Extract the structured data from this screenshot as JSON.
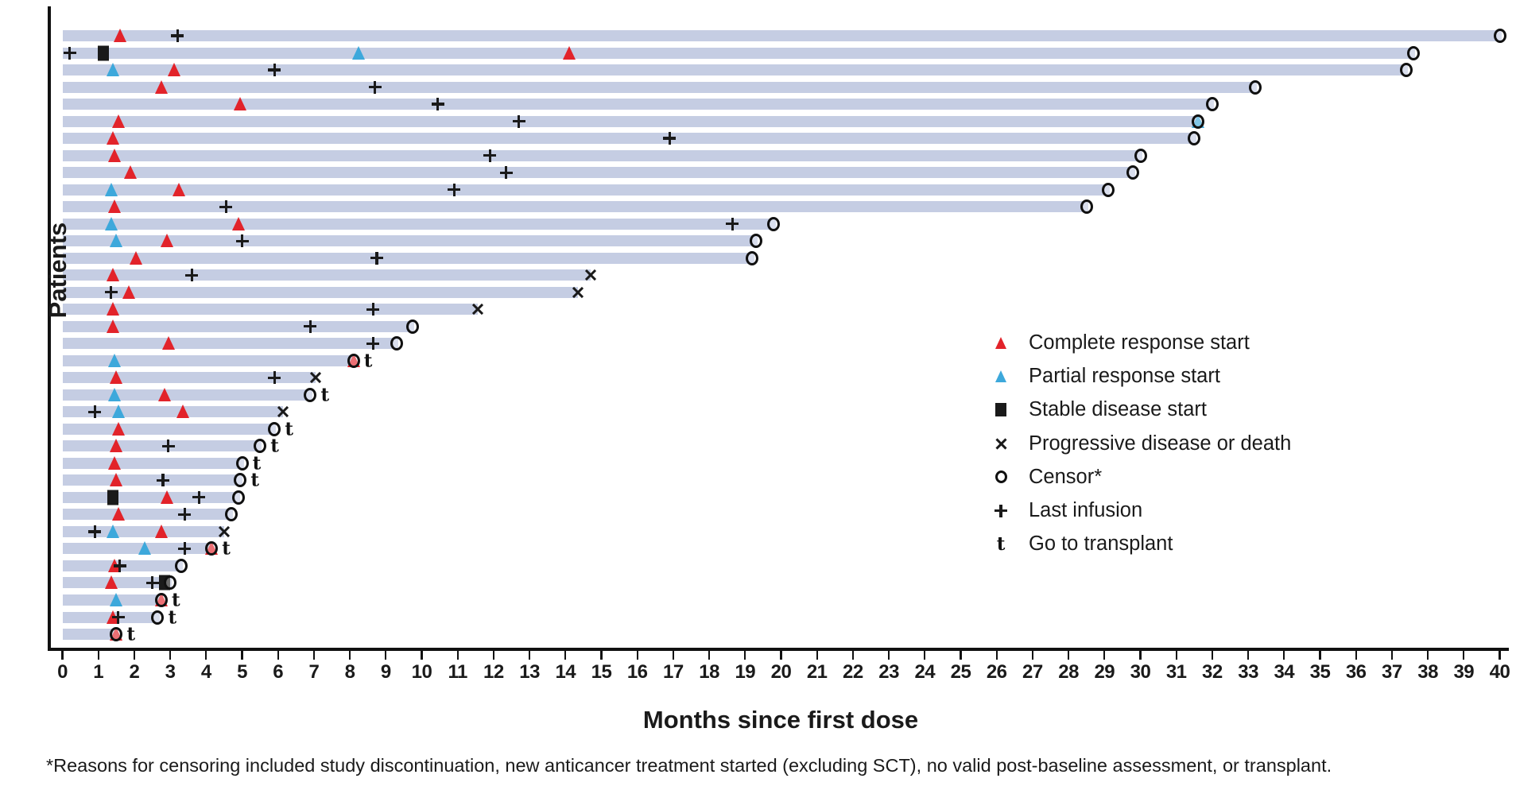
{
  "y_axis_label": "Patients",
  "x_axis_title": "Months since first dose",
  "footnote": "*Reasons for censoring included study discontinuation, new anticancer treatment started (excluding SCT), no valid post-baseline assessment, or transplant.",
  "colors": {
    "complete_response_red": "#e2232a",
    "partial_response_blue": "#3da8db",
    "marker_black": "#1a1a1a",
    "bar_fill": "#c5cde3"
  },
  "legend": {
    "items": [
      {
        "type": "cr",
        "label": "Complete response start"
      },
      {
        "type": "pr",
        "label": "Partial response start"
      },
      {
        "type": "sd",
        "label": "Stable disease start"
      },
      {
        "type": "pd",
        "label": "Progressive disease or death"
      },
      {
        "type": "cen",
        "label": "Censor*"
      },
      {
        "type": "inf",
        "label": "Last infusion"
      },
      {
        "type": "t",
        "label": "Go to transplant"
      }
    ]
  },
  "chart_data": {
    "type": "bar",
    "subtype": "swimmer-plot",
    "title": "",
    "xlabel": "Months since first dose",
    "ylabel": "Patients",
    "xlim": [
      0,
      40
    ],
    "grid": false,
    "legend_position": "middle-right",
    "x_ticks": [
      0,
      1,
      2,
      3,
      4,
      5,
      6,
      7,
      8,
      9,
      10,
      11,
      12,
      13,
      14,
      15,
      16,
      17,
      18,
      19,
      20,
      21,
      22,
      23,
      24,
      25,
      26,
      27,
      28,
      29,
      30,
      31,
      32,
      33,
      34,
      35,
      36,
      37,
      38,
      39,
      40
    ],
    "marker_types": {
      "cr": "complete-response-start",
      "pr": "partial-response-start",
      "sd": "stable-disease-start",
      "pd": "progressive-disease-or-death",
      "cen": "censor",
      "inf": "last-infusion",
      "t": "go-to-transplant"
    },
    "patients": [
      {
        "bar": 40.05,
        "markers": [
          [
            "cr",
            1.6
          ],
          [
            "inf",
            3.2
          ],
          [
            "cen",
            40.0
          ]
        ]
      },
      {
        "bar": 37.65,
        "markers": [
          [
            "inf",
            0.2
          ],
          [
            "sd",
            1.15
          ],
          [
            "pr",
            8.25
          ],
          [
            "cr",
            14.1
          ],
          [
            "cen",
            37.6
          ]
        ]
      },
      {
        "bar": 37.45,
        "markers": [
          [
            "pr",
            1.4
          ],
          [
            "cr",
            3.1
          ],
          [
            "inf",
            5.9
          ],
          [
            "cen",
            37.4
          ]
        ]
      },
      {
        "bar": 33.25,
        "markers": [
          [
            "cr",
            2.75
          ],
          [
            "inf",
            8.7
          ],
          [
            "cen",
            33.2
          ]
        ]
      },
      {
        "bar": 32.05,
        "markers": [
          [
            "cr",
            4.95
          ],
          [
            "inf",
            10.45
          ],
          [
            "cen",
            32.0
          ]
        ]
      },
      {
        "bar": 31.65,
        "markers": [
          [
            "cr",
            1.55
          ],
          [
            "inf",
            12.7
          ],
          [
            "pr",
            31.6
          ],
          [
            "cen",
            31.6
          ]
        ]
      },
      {
        "bar": 31.55,
        "markers": [
          [
            "cr",
            1.4
          ],
          [
            "inf",
            16.9
          ],
          [
            "cen",
            31.5
          ]
        ]
      },
      {
        "bar": 30.05,
        "markers": [
          [
            "cr",
            1.45
          ],
          [
            "inf",
            11.9
          ],
          [
            "cen",
            30.0
          ]
        ]
      },
      {
        "bar": 29.85,
        "markers": [
          [
            "cr",
            1.9
          ],
          [
            "inf",
            12.35
          ],
          [
            "cen",
            29.8
          ]
        ]
      },
      {
        "bar": 29.15,
        "markers": [
          [
            "pr",
            1.35
          ],
          [
            "cr",
            3.25
          ],
          [
            "inf",
            10.9
          ],
          [
            "cen",
            29.1
          ]
        ]
      },
      {
        "bar": 28.55,
        "markers": [
          [
            "cr",
            1.45
          ],
          [
            "inf",
            4.55
          ],
          [
            "cen",
            28.5
          ]
        ]
      },
      {
        "bar": 19.85,
        "markers": [
          [
            "pr",
            1.35
          ],
          [
            "cr",
            4.9
          ],
          [
            "inf",
            18.65
          ],
          [
            "cen",
            19.8
          ]
        ]
      },
      {
        "bar": 19.35,
        "markers": [
          [
            "pr",
            1.5
          ],
          [
            "cr",
            2.9
          ],
          [
            "inf",
            5.0
          ],
          [
            "cen",
            19.3
          ]
        ]
      },
      {
        "bar": 19.25,
        "markers": [
          [
            "cr",
            2.05
          ],
          [
            "inf",
            8.75
          ],
          [
            "cen",
            19.2
          ]
        ]
      },
      {
        "bar": 14.7,
        "markers": [
          [
            "cr",
            1.4
          ],
          [
            "inf",
            3.6
          ],
          [
            "pd",
            14.7
          ]
        ]
      },
      {
        "bar": 14.35,
        "markers": [
          [
            "inf",
            1.35
          ],
          [
            "cr",
            1.85
          ],
          [
            "pd",
            14.35
          ]
        ]
      },
      {
        "bar": 11.55,
        "markers": [
          [
            "cr",
            1.4
          ],
          [
            "inf",
            8.65
          ],
          [
            "pd",
            11.55
          ]
        ]
      },
      {
        "bar": 9.8,
        "markers": [
          [
            "cr",
            1.4
          ],
          [
            "inf",
            6.9
          ],
          [
            "cen",
            9.75
          ]
        ]
      },
      {
        "bar": 9.35,
        "markers": [
          [
            "cr",
            2.95
          ],
          [
            "inf",
            8.65
          ],
          [
            "cen",
            9.3
          ]
        ]
      },
      {
        "bar": 8.15,
        "markers": [
          [
            "pr",
            1.45
          ],
          [
            "cr",
            8.1
          ],
          [
            "cen",
            8.1
          ],
          [
            "t",
            8.45
          ]
        ]
      },
      {
        "bar": 7.05,
        "markers": [
          [
            "cr",
            1.5
          ],
          [
            "inf",
            5.9
          ],
          [
            "pd",
            7.05
          ]
        ]
      },
      {
        "bar": 6.95,
        "markers": [
          [
            "pr",
            1.45
          ],
          [
            "cr",
            2.85
          ],
          [
            "cen",
            6.9
          ],
          [
            "t",
            7.25
          ]
        ]
      },
      {
        "bar": 6.15,
        "markers": [
          [
            "inf",
            0.9
          ],
          [
            "pr",
            1.55
          ],
          [
            "cr",
            3.35
          ],
          [
            "pd",
            6.15
          ]
        ]
      },
      {
        "bar": 5.95,
        "markers": [
          [
            "cr",
            1.55
          ],
          [
            "cen",
            5.9
          ],
          [
            "t",
            6.25
          ]
        ]
      },
      {
        "bar": 5.55,
        "markers": [
          [
            "cr",
            1.5
          ],
          [
            "inf",
            2.95
          ],
          [
            "cen",
            5.5
          ],
          [
            "t",
            5.85
          ]
        ]
      },
      {
        "bar": 5.05,
        "markers": [
          [
            "cr",
            1.45
          ],
          [
            "cen",
            5.0
          ],
          [
            "t",
            5.35
          ]
        ]
      },
      {
        "bar": 5.0,
        "markers": [
          [
            "cr",
            1.5
          ],
          [
            "inf",
            2.8
          ],
          [
            "cen",
            4.95
          ],
          [
            "t",
            5.3
          ]
        ]
      },
      {
        "bar": 4.95,
        "markers": [
          [
            "sd",
            1.4
          ],
          [
            "cr",
            2.9
          ],
          [
            "inf",
            3.8
          ],
          [
            "cen",
            4.9
          ]
        ]
      },
      {
        "bar": 4.75,
        "markers": [
          [
            "cr",
            1.55
          ],
          [
            "inf",
            3.4
          ],
          [
            "cen",
            4.7
          ]
        ]
      },
      {
        "bar": 4.5,
        "markers": [
          [
            "inf",
            0.9
          ],
          [
            "pr",
            1.4
          ],
          [
            "cr",
            2.75
          ],
          [
            "pd",
            4.5
          ]
        ]
      },
      {
        "bar": 4.2,
        "markers": [
          [
            "pr",
            2.3
          ],
          [
            "inf",
            3.4
          ],
          [
            "cr",
            4.15
          ],
          [
            "cen",
            4.15
          ],
          [
            "t",
            4.5
          ]
        ]
      },
      {
        "bar": 3.35,
        "markers": [
          [
            "cr",
            1.45
          ],
          [
            "inf",
            1.6
          ],
          [
            "cen",
            3.3
          ]
        ]
      },
      {
        "bar": 3.05,
        "markers": [
          [
            "cr",
            1.35
          ],
          [
            "inf",
            2.5
          ],
          [
            "sd",
            2.85
          ],
          [
            "cen",
            3.0
          ]
        ]
      },
      {
        "bar": 2.8,
        "markers": [
          [
            "pr",
            1.5
          ],
          [
            "cr",
            2.75
          ],
          [
            "cen",
            2.75
          ],
          [
            "t",
            3.1
          ]
        ]
      },
      {
        "bar": 2.7,
        "markers": [
          [
            "cr",
            1.4
          ],
          [
            "inf",
            1.55
          ],
          [
            "cen",
            2.65
          ],
          [
            "t",
            3.0
          ]
        ]
      },
      {
        "bar": 1.55,
        "markers": [
          [
            "cr",
            1.5
          ],
          [
            "cen",
            1.5
          ],
          [
            "t",
            1.85
          ]
        ]
      }
    ]
  }
}
